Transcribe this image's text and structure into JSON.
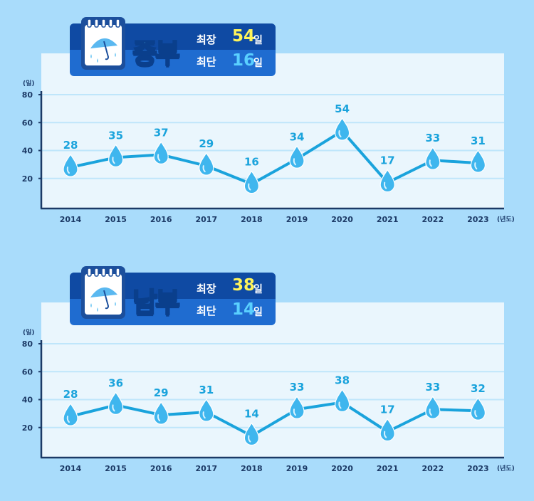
{
  "chart_data": [
    {
      "type": "line",
      "region": "중부",
      "max_label": "최장",
      "max_value": "54",
      "max_unit": "일",
      "min_label": "최단",
      "min_value": "16",
      "min_unit": "일",
      "ylabel": "(일)",
      "xunit": "(년도)",
      "yticks": [
        "20",
        "40",
        "60",
        "80"
      ],
      "ylim": [
        0,
        80
      ],
      "categories": [
        "2014",
        "2015",
        "2016",
        "2017",
        "2018",
        "2019",
        "2020",
        "2021",
        "2022",
        "2023"
      ],
      "values": [
        28,
        35,
        37,
        29,
        16,
        34,
        54,
        17,
        33,
        31
      ],
      "grid": true
    },
    {
      "type": "line",
      "region": "남부",
      "max_label": "최장",
      "max_value": "38",
      "max_unit": "일",
      "min_label": "최단",
      "min_value": "14",
      "min_unit": "일",
      "ylabel": "(일)",
      "xunit": "(년도)",
      "yticks": [
        "20",
        "40",
        "60",
        "80"
      ],
      "ylim": [
        0,
        80
      ],
      "categories": [
        "2014",
        "2015",
        "2016",
        "2017",
        "2018",
        "2019",
        "2020",
        "2021",
        "2022",
        "2023"
      ],
      "values": [
        28,
        36,
        29,
        31,
        14,
        33,
        38,
        17,
        33,
        32
      ],
      "grid": true
    }
  ],
  "colors": {
    "background": "#a9dcfb",
    "plot_background": "#eaf6fd",
    "line": "#1aa3dc",
    "value_label": "#1aa3dc",
    "axis": "#1c3a66",
    "grid": "#bfe6fb"
  },
  "icons": {
    "calendar": "calendar-umbrella-icon",
    "marker": "raindrop-icon"
  }
}
